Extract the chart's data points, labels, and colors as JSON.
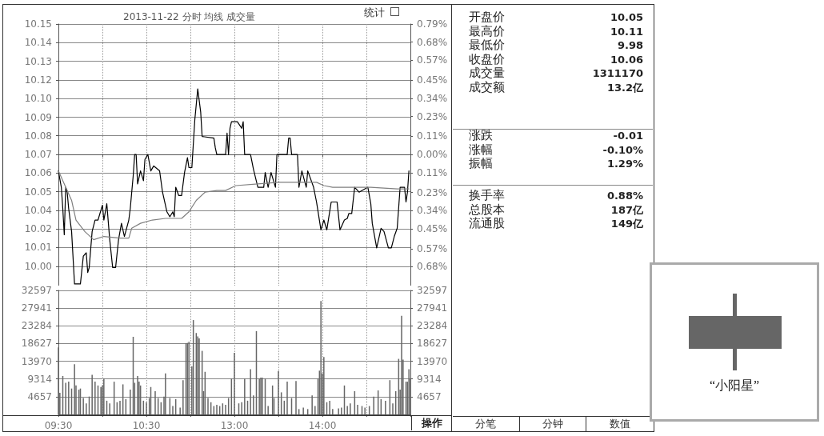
{
  "chart_data": [
    {
      "type": "line",
      "title": "2013-11-22 分时 均线 成交量",
      "annotations": [
        "统计"
      ],
      "grid": true,
      "line_style": "solid",
      "tick_labels": "y",
      "categories": [
        null,
        null,
        null,
        null,
        null,
        null,
        null,
        null,
        null,
        null,
        null,
        null,
        null,
        null,
        null,
        null,
        null,
        null,
        null,
        null,
        null,
        null,
        null,
        null,
        null,
        null,
        null,
        null,
        null,
        null,
        null,
        null,
        null,
        null,
        null,
        null,
        null,
        null,
        null,
        null,
        null,
        null,
        null,
        null,
        null,
        null,
        null,
        null,
        null,
        null,
        null,
        null,
        null,
        null,
        null,
        null,
        null,
        null,
        null,
        null,
        null,
        null,
        null,
        null,
        null,
        null,
        null,
        null,
        null,
        null,
        null,
        null,
        null,
        null,
        null,
        null,
        null,
        null,
        null,
        null,
        null,
        null,
        null,
        null,
        null,
        null,
        null,
        null,
        null,
        null,
        null,
        null,
        null,
        null,
        null,
        null,
        null,
        null,
        null,
        null,
        null,
        null,
        null,
        null,
        null,
        null,
        null,
        null,
        null,
        null,
        null,
        null,
        null,
        null,
        null,
        null,
        null,
        null,
        null,
        null,
        null,
        null,
        null,
        null,
        null,
        null,
        null,
        null,
        null,
        null,
        null,
        null,
        null,
        null,
        null,
        null,
        null,
        null,
        null,
        null,
        null,
        null,
        null,
        null,
        null,
        null,
        null,
        null,
        null,
        null,
        null,
        null,
        null,
        null,
        null,
        null,
        null,
        null,
        null,
        null,
        null,
        null,
        null,
        null,
        null,
        null,
        null,
        null,
        null,
        null,
        null,
        null,
        null,
        null,
        null,
        null,
        null,
        null,
        null,
        null,
        null,
        null,
        null,
        null,
        null,
        null,
        null,
        null,
        null,
        null,
        null,
        null,
        null,
        null,
        null,
        null,
        null,
        null,
        null,
        null,
        null,
        null,
        null,
        null,
        null,
        null,
        null,
        null,
        null,
        null,
        null,
        null,
        null,
        null,
        null,
        null,
        null,
        null,
        null,
        null,
        null,
        null,
        null,
        null,
        null,
        null,
        null,
        null,
        null,
        null,
        null,
        null,
        null,
        null,
        null,
        null,
        null,
        null,
        null,
        null,
        null
      ],
      "series": [
        {
          "color": "#000000",
          "values": [
            10.06,
            null,
            10.05,
            10.037,
            10.021,
            10.05,
            10.047,
            10.037,
            null,
            10.023,
            null,
            9.991,
            null,
            null,
            null,
            9.991,
            null,
            10.008,
            null,
            10.01,
            9.998,
            10.001,
            null,
            10.023,
            null,
            10.03,
            null,
            10.03,
            null,
            null,
            10.039,
            10.03,
            null,
            10.04,
            null,
            10.018,
            null,
            10.001,
            null,
            10.001,
            null,
            10.018,
            null,
            10.028,
            null,
            10.02,
            null,
            null,
            10.03,
            10.037,
            null,
            10.057,
            10.07,
            10.07,
            10.052,
            null,
            10.06,
            null,
            10.054,
            10.067,
            null,
            10.07,
            null,
            10.06,
            null,
            10.063,
            null,
            null,
            null,
            10.06,
            null,
            10.047,
            null,
            null,
            10.035,
            null,
            10.032,
            null,
            10.035,
            10.032,
            10.05,
            null,
            10.045,
            null,
            10.045,
            null,
            10.059,
            null,
            10.068,
            10.062,
            null,
            10.062,
            null,
            10.091,
            null,
            10.11,
            null,
            10.096,
            10.081,
            null,
            null,
            null,
            null,
            null,
            null,
            null,
            10.08,
            10.074,
            10.07,
            null,
            null,
            null,
            null,
            null,
            10.07,
            10.083,
            10.07,
            10.086,
            10.09,
            null,
            null,
            null,
            10.09,
            null,
            null,
            10.086,
            10.09,
            10.07,
            null,
            null,
            null,
            10.07,
            null,
            10.061,
            null,
            null,
            10.05,
            null,
            null,
            null,
            10.05,
            10.059,
            null,
            10.05,
            null,
            10.059,
            null,
            null,
            10.05,
            10.07,
            null,
            null,
            null,
            null,
            null,
            null,
            10.07,
            10.08,
            10.08,
            10.07,
            null,
            null,
            null,
            10.07,
            10.05,
            null,
            10.06,
            null,
            null,
            10.05,
            10.06,
            null,
            null,
            null,
            10.05,
            null,
            10.041,
            null,
            null,
            10.024,
            null,
            10.03,
            null,
            10.024,
            null,
            null,
            10.041,
            null,
            null,
            null,
            10.041,
            null,
            10.024,
            null,
            null,
            10.03,
            null,
            10.031,
            10.034,
            null,
            10.034,
            null,
            10.05,
            null,
            null,
            10.047,
            null,
            null,
            null,
            null,
            null,
            10.05,
            null,
            10.04,
            10.028,
            null,
            null,
            10.013,
            null,
            null,
            10.025,
            null,
            10.023,
            null,
            null,
            10.013,
            null,
            10.013,
            null,
            10.02,
            null,
            10.025,
            null,
            10.05,
            null,
            null,
            10.05,
            10.041,
            10.047,
            10.06,
            null
          ]
        },
        {
          "color": "#808080",
          "values": [
            10.06,
            null,
            null,
            null,
            null,
            null,
            null,
            null,
            null,
            10.042,
            null,
            null,
            10.03,
            null,
            null,
            null,
            null,
            null,
            10.023,
            null,
            null,
            null,
            null,
            null,
            10.018,
            null,
            null,
            null,
            null,
            null,
            null,
            10.02,
            null,
            null,
            null,
            null,
            null,
            null,
            null,
            null,
            null,
            null,
            10.019,
            null,
            null,
            null,
            null,
            null,
            10.019,
            null,
            10.025,
            null,
            null,
            null,
            null,
            null,
            10.028,
            null,
            null,
            null,
            null,
            null,
            null,
            null,
            10.03,
            null,
            null,
            null,
            null,
            null,
            null,
            null,
            null,
            10.031,
            null,
            null,
            null,
            null,
            null,
            null,
            null,
            null,
            null,
            null,
            10.031,
            null,
            null,
            null,
            null,
            10.035,
            null,
            null,
            null,
            null,
            10.042,
            null,
            null,
            null,
            null,
            null,
            10.047,
            null,
            null,
            null,
            null,
            null,
            null,
            null,
            10.048,
            null,
            null,
            null,
            null,
            null,
            10.048,
            null,
            null,
            null,
            null,
            null,
            null,
            10.051,
            null,
            null,
            null,
            null,
            null,
            null,
            null,
            null,
            null,
            null,
            null,
            null,
            null,
            null,
            10.052,
            null,
            null,
            null,
            null,
            null,
            null,
            null,
            null,
            null,
            null,
            null,
            null,
            null,
            10.053,
            null,
            null,
            null,
            null,
            null,
            null,
            null,
            null,
            null,
            null,
            null,
            null,
            10.053,
            null,
            null,
            null,
            null,
            null,
            null,
            null,
            null,
            null,
            null,
            null,
            null,
            10.053,
            null,
            null,
            null,
            null,
            10.051,
            null,
            null,
            null,
            null,
            null,
            10.05,
            null,
            null,
            null,
            null,
            null,
            null,
            null,
            null,
            null,
            null,
            null,
            null,
            null,
            null,
            null,
            null,
            null,
            null,
            null,
            null,
            null,
            null,
            null,
            null,
            null,
            10.05,
            null,
            null,
            null,
            null,
            null,
            null,
            null,
            null,
            null,
            null,
            null,
            null,
            null,
            null,
            null,
            null,
            null,
            10.049,
            null,
            null,
            null,
            null,
            null,
            null,
            null,
            10.049,
            null
          ]
        }
      ],
      "ylim": [
        9.99,
        10.1496
      ],
      "yticks": [
        {
          "value": 10.1496,
          "label": "10.15"
        },
        {
          "value": 10.1382,
          "label": "10.14"
        },
        {
          "value": 10.1268,
          "label": "10.13"
        },
        {
          "value": 10.1155,
          "label": "10.12"
        },
        {
          "value": 10.1041,
          "label": "10.10"
        },
        {
          "value": 10.0927,
          "label": "10.09"
        },
        {
          "value": 10.0814,
          "label": "10.08"
        },
        {
          "value": 10.07,
          "label": "10.07"
        },
        {
          "value": 10.0586,
          "label": "10.06"
        },
        {
          "value": 10.0473,
          "label": "10.05"
        },
        {
          "value": 10.0359,
          "label": "10.04"
        },
        {
          "value": 10.0245,
          "label": "10.02"
        },
        {
          "value": 10.0132,
          "label": "10.01"
        },
        {
          "value": 10.0018,
          "label": "10.00"
        }
      ],
      "y2lim": [
        -0.794,
        0.79
      ],
      "y2ticks": [
        {
          "value": 0.79,
          "label": "0.79%"
        },
        {
          "value": 0.68,
          "label": "0.68%"
        },
        {
          "value": 0.57,
          "label": "0.57%"
        },
        {
          "value": 0.45,
          "label": "0.45%"
        },
        {
          "value": 0.34,
          "label": "0.34%"
        },
        {
          "value": 0.23,
          "label": "0.23%"
        },
        {
          "value": 0.11,
          "label": "0.11%"
        },
        {
          "value": 0,
          "label": "0.00%"
        },
        {
          "value": -0.11,
          "label": "0.11%"
        },
        {
          "value": -0.23,
          "label": "0.23%"
        },
        {
          "value": -0.34,
          "label": "0.34%"
        },
        {
          "value": -0.45,
          "label": "0.45%"
        },
        {
          "value": -0.57,
          "label": "0.57%"
        },
        {
          "value": -0.68,
          "label": "0.68%"
        }
      ]
    },
    {
      "type": "bar",
      "annotations": [
        "操作"
      ],
      "grid": true,
      "color": "#666666",
      "categories": [
        "09:30",
        null,
        null,
        null,
        null,
        null,
        null,
        null,
        null,
        null,
        null,
        null,
        null,
        null,
        null,
        null,
        null,
        null,
        null,
        null,
        null,
        null,
        null,
        null,
        null,
        null,
        null,
        null,
        null,
        null,
        null,
        null,
        null,
        null,
        null,
        null,
        null,
        null,
        null,
        null,
        null,
        null,
        null,
        null,
        null,
        null,
        null,
        null,
        null,
        null,
        null,
        null,
        null,
        null,
        null,
        null,
        null,
        null,
        null,
        null,
        "10:30",
        null,
        null,
        null,
        null,
        null,
        null,
        null,
        null,
        null,
        null,
        null,
        null,
        null,
        null,
        null,
        null,
        null,
        null,
        null,
        null,
        null,
        null,
        null,
        null,
        null,
        null,
        null,
        null,
        null,
        null,
        null,
        null,
        null,
        null,
        null,
        null,
        null,
        null,
        null,
        null,
        null,
        null,
        null,
        null,
        null,
        null,
        null,
        null,
        null,
        null,
        null,
        null,
        null,
        null,
        null,
        null,
        null,
        null,
        null,
        "13:00",
        null,
        null,
        null,
        null,
        null,
        null,
        null,
        null,
        null,
        null,
        null,
        null,
        null,
        null,
        null,
        null,
        null,
        null,
        null,
        null,
        null,
        null,
        null,
        null,
        null,
        null,
        null,
        null,
        null,
        null,
        null,
        null,
        null,
        null,
        null,
        null,
        null,
        null,
        null,
        null,
        null,
        null,
        null,
        null,
        null,
        null,
        null,
        null,
        null,
        null,
        null,
        null,
        null,
        null,
        null,
        null,
        null,
        null,
        null,
        "14:00",
        null,
        null,
        null,
        null,
        null,
        null,
        null,
        null,
        null,
        null,
        null,
        null,
        null,
        null,
        null,
        null,
        null,
        null,
        null,
        null,
        null,
        null,
        null,
        null,
        null,
        null,
        null,
        null,
        null,
        null,
        null,
        null,
        null,
        null,
        null,
        null,
        null,
        null,
        null,
        null,
        null,
        null,
        null,
        null,
        null,
        null,
        null,
        null,
        null,
        null,
        null,
        null,
        null,
        null,
        null,
        null,
        null,
        null,
        null,
        null
      ],
      "values": [
        17600,
        5700,
        null,
        10100,
        null,
        8300,
        null,
        8600,
        null,
        6800,
        null,
        13200,
        7600,
        null,
        6500,
        6800,
        null,
        4300,
        null,
        2900,
        null,
        4700,
        null,
        10400,
        null,
        8600,
        null,
        7600,
        null,
        7200,
        7600,
        9400,
        null,
        3600,
        null,
        2900,
        null,
        null,
        8600,
        null,
        3200,
        null,
        3600,
        null,
        7900,
        null,
        4000,
        null,
        null,
        6500,
        null,
        20400,
        8300,
        null,
        10100,
        8600,
        7600,
        null,
        3600,
        null,
        3200,
        null,
        4300,
        7200,
        null,
        null,
        6100,
        null,
        4300,
        null,
        3200,
        null,
        4700,
        10800,
        null,
        null,
        4300,
        null,
        2200,
        null,
        4000,
        null,
        null,
        1800,
        null,
        9000,
        null,
        18700,
        18800,
        19100,
        null,
        12600,
        24800,
        null,
        21400,
        20500,
        20000,
        null,
        16700,
        6100,
        11200,
        null,
        4300,
        null,
        3200,
        null,
        2200,
        null,
        2500,
        null,
        2200,
        null,
        2900,
        null,
        2500,
        null,
        4300,
        null,
        9400,
        null,
        16200,
        null,
        null,
        2900,
        null,
        3200,
        null,
        9400,
        null,
        3600,
        null,
        11900,
        null,
        5000,
        null,
        21900,
        null,
        9400,
        9700,
        9700,
        null,
        9400,
        null,
        2200,
        null,
        null,
        7600,
        4300,
        null,
        null,
        11400,
        null,
        5800,
        null,
        3600,
        null,
        8600,
        null,
        null,
        4300,
        null,
        null,
        8800,
        null,
        1400,
        null,
        null,
        1800,
        null,
        null,
        1400,
        null,
        null,
        5000,
        null,
        2200,
        null,
        9400,
        11500,
        29800,
        10800,
        15100,
        null,
        3200,
        null,
        3600,
        null,
        1400,
        null,
        null,
        null,
        1600,
        null,
        1800,
        null,
        7600,
        null,
        2200,
        null,
        2900,
        null,
        null,
        6100,
        null,
        2500,
        null,
        null,
        2200,
        null,
        1800,
        null,
        null,
        2200,
        null,
        null,
        4700,
        null,
        null,
        6300,
        null,
        4000,
        null,
        null,
        3600,
        null,
        null,
        9000,
        null,
        2900,
        null,
        6100,
        null,
        14600,
        6500,
        25900,
        14400,
        null,
        8600,
        8600,
        11900,
        9400
      ],
      "ylim": [
        0,
        32597
      ],
      "yticks": [
        4657,
        9314,
        13970,
        18627,
        23284,
        27941,
        32597
      ],
      "y2lim": [
        0,
        32597
      ],
      "y2ticks": [
        4657,
        9314,
        13970,
        18627,
        23284,
        27941,
        32597
      ]
    },
    {
      "type": "other",
      "categories": [
        "开盘价",
        "最高价",
        "最低价",
        "收盘价",
        "成交量",
        "成交额"
      ],
      "value_labels": [
        "10.05",
        "10.11",
        "9.98",
        "10.06",
        "1311170",
        "13.2亿"
      ]
    },
    {
      "type": "other",
      "categories": [
        "涨跌",
        "涨幅",
        "振幅"
      ],
      "value_labels": [
        "-0.01",
        "-0.10%",
        "1.29%"
      ]
    },
    {
      "type": "other",
      "categories": [
        "换手率",
        "总股本",
        "流通股"
      ],
      "value_labels": [
        "0.88%",
        "187亿",
        "149亿"
      ],
      "annotations": [
        "分笔",
        "分钟",
        "数值"
      ]
    },
    {
      "type": "other",
      "annotations": [
        "“小阳星”"
      ]
    }
  ]
}
